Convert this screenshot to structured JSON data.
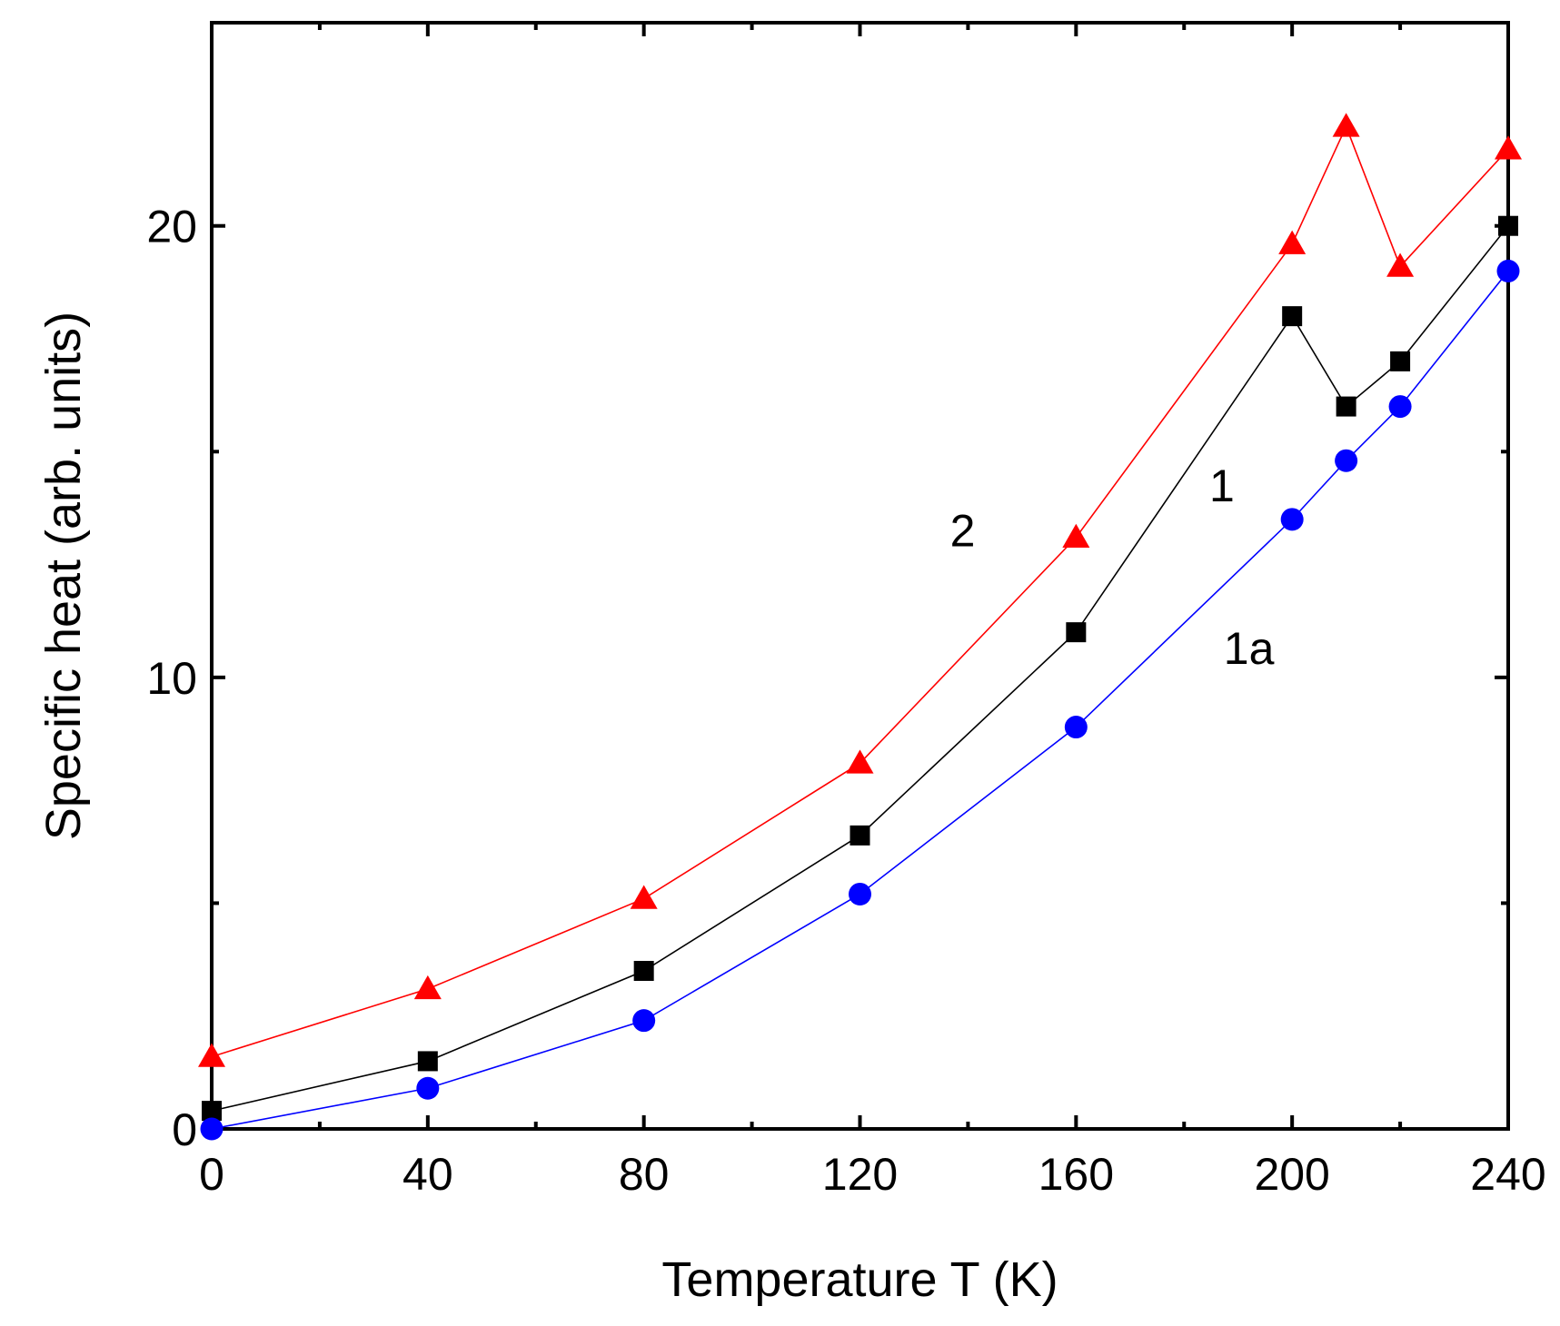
{
  "chart_data": {
    "type": "line",
    "xlabel": "Temperature T (K)",
    "ylabel": "Specific heat (arb. units)",
    "xlim": [
      0,
      240
    ],
    "ylim": [
      0,
      24.5
    ],
    "x_ticks": [
      0,
      40,
      80,
      120,
      160,
      200,
      240
    ],
    "x_minor_ticks": [
      20,
      60,
      100,
      140,
      180,
      220
    ],
    "y_ticks": [
      0,
      10,
      20
    ],
    "y_minor_ticks": [
      5,
      15
    ],
    "grid": false,
    "series": [
      {
        "name": "2",
        "color": "#ff0000",
        "marker": "triangle",
        "x": [
          0,
          40,
          80,
          120,
          160,
          200,
          210,
          220,
          240
        ],
        "y": [
          1.6,
          3.1,
          5.1,
          8.1,
          13.1,
          19.6,
          22.2,
          19.1,
          21.7
        ]
      },
      {
        "name": "1",
        "color": "#000000",
        "marker": "square",
        "x": [
          0,
          40,
          80,
          120,
          160,
          200,
          210,
          220,
          240
        ],
        "y": [
          0.4,
          1.5,
          3.5,
          6.5,
          11.0,
          18.0,
          16.0,
          17.0,
          20.0
        ]
      },
      {
        "name": "1a",
        "color": "#0000ff",
        "marker": "circle",
        "x": [
          0,
          40,
          80,
          120,
          160,
          200,
          210,
          220,
          240
        ],
        "y": [
          0.0,
          0.9,
          2.4,
          5.2,
          8.9,
          13.5,
          14.8,
          16.0,
          19.0
        ]
      }
    ],
    "annotations": [
      {
        "text": "2",
        "x": 139,
        "y": 12.9
      },
      {
        "text": "1",
        "x": 187,
        "y": 13.9
      },
      {
        "text": "1a",
        "x": 192,
        "y": 10.3
      }
    ]
  }
}
